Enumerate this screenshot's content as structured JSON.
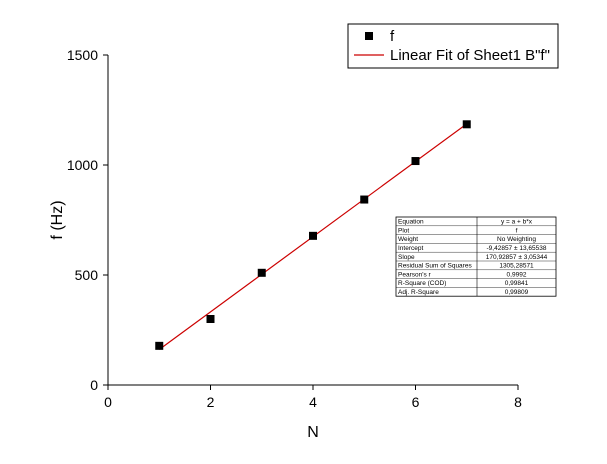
{
  "chart_data": {
    "type": "scatter",
    "xlabel": "N",
    "ylabel": "f (Hz)",
    "xlim": [
      0,
      8
    ],
    "ylim": [
      0,
      1500
    ],
    "xticks": [
      0,
      2,
      4,
      6,
      8
    ],
    "yticks": [
      0,
      500,
      1000,
      1500
    ],
    "grid": false,
    "legend_position": "top-right",
    "series": [
      {
        "name": "f",
        "kind": "scatter",
        "color": "#000000",
        "x": [
          1,
          2,
          3,
          4,
          5,
          6,
          7
        ],
        "y": [
          178,
          300,
          510,
          678,
          843,
          1018,
          1185
        ]
      },
      {
        "name": "Linear Fit of Sheet1 B\"f\"",
        "kind": "line",
        "color": "#cc0000",
        "x": [
          1,
          7
        ],
        "y": [
          161.4,
          1186.9
        ]
      }
    ],
    "fit_table": [
      [
        "Equation",
        "y = a + b*x"
      ],
      [
        "Plot",
        "f"
      ],
      [
        "Weight",
        "No Weighting"
      ],
      [
        "Intercept",
        "-9,42857 ± 13,65538"
      ],
      [
        "Slope",
        "170,92857 ± 3,05344"
      ],
      [
        "Residual Sum of Squares",
        "1305,28571"
      ],
      [
        "Pearson's r",
        "0,9992"
      ],
      [
        "R-Square (COD)",
        "0,99841"
      ],
      [
        "Adj. R-Square",
        "0,99809"
      ]
    ]
  }
}
